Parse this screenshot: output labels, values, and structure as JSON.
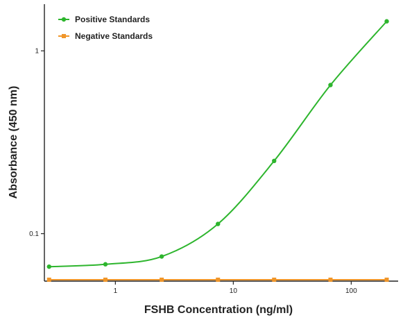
{
  "chart_data": {
    "type": "line",
    "xlabel": "FSHB Concentration (ng/ml)",
    "ylabel": "Absorbance (450 nm)",
    "xscale": "log",
    "yscale": "log",
    "xlim": [
      0.25,
      250
    ],
    "ylim": [
      0.055,
      1.8
    ],
    "xticks": [
      1,
      10,
      100
    ],
    "xtick_labels": [
      "1",
      "10",
      "100"
    ],
    "yticks": [
      0.1,
      1
    ],
    "ytick_labels": [
      "0.1",
      "1"
    ],
    "grid": false,
    "legend_position": "top-left",
    "x": [
      0.274,
      0.823,
      2.47,
      7.41,
      22.2,
      66.7,
      200
    ],
    "series": [
      {
        "name": "Positive Standards",
        "color": "#2db52d",
        "marker": "circle",
        "curve": "smooth",
        "values": [
          0.066,
          0.068,
          0.075,
          0.113,
          0.25,
          0.65,
          1.45
        ]
      },
      {
        "name": "Negative Standards",
        "color": "#f0962a",
        "marker": "square",
        "curve": "straight",
        "values": [
          0.056,
          0.056,
          0.056,
          0.056,
          0.056,
          0.056,
          0.056
        ]
      }
    ]
  }
}
